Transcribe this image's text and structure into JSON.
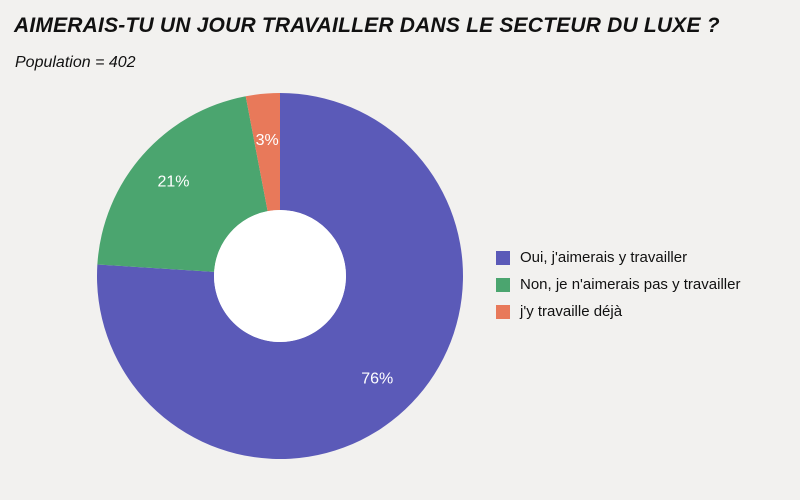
{
  "title": "AIMERAIS-TU UN JOUR TRAVAILLER DANS LE SECTEUR DU LUXE ?",
  "subtitle": "Population = 402",
  "chart_data": {
    "type": "pie",
    "style": "donut",
    "title": "AIMERAIS-TU UN JOUR TRAVAILLER DANS LE SECTEUR DU LUXE ?",
    "subtitle": "Population = 402",
    "legend_position": "right",
    "slices": [
      {
        "name": "Oui, j'aimerais y travailler",
        "value": 76,
        "label": "76%",
        "color": "#5b5ab8"
      },
      {
        "name": "Non, je n'aimerais pas y travailler",
        "value": 21,
        "label": "21%",
        "color": "#4ba56f"
      },
      {
        "name": "j'y travaille déjà",
        "value": 3,
        "label": "3%",
        "color": "#e8795a"
      }
    ]
  }
}
